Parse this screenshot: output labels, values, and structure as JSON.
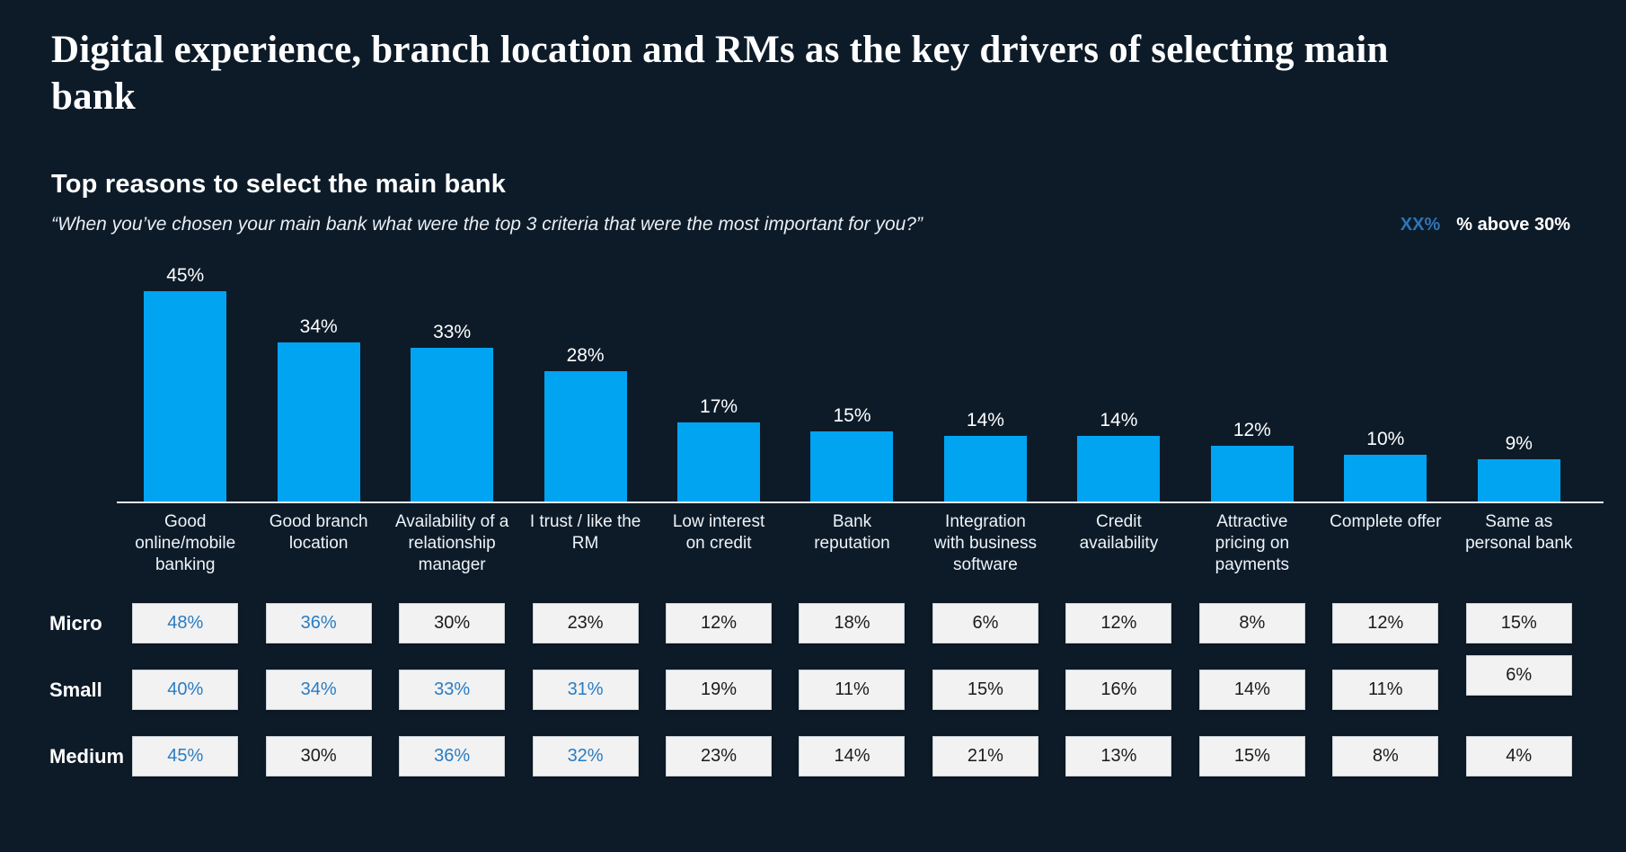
{
  "header": {
    "title": "Digital experience, branch location and RMs as the key drivers of selecting main bank"
  },
  "chart": {
    "title": "Top reasons to select the main bank",
    "subtitle": "“When you’ve chosen your main bank what were the top 3 criteria that were the most important for you?”",
    "legend": {
      "sample": "XX%",
      "label": "% above 30%"
    }
  },
  "chart_data": {
    "type": "bar",
    "title": "Top reasons to select the main bank",
    "subtitle": "“When you’ve chosen your main bank what were the top 3 criteria that were the most important for you?”",
    "unit": "%",
    "ylim": [
      0,
      50
    ],
    "grid": false,
    "legend_note": "values above 30% shown in blue",
    "categories": [
      "Good online/mobile banking",
      "Good branch location",
      "Availability of a relationship manager",
      "I trust / like the RM",
      "Low interest on credit",
      "Bank reputation",
      "Integration with business software",
      "Credit availability",
      "Attractive pricing on payments",
      "Complete offer",
      "Same as personal bank"
    ],
    "values": [
      45,
      34,
      33,
      28,
      17,
      15,
      14,
      14,
      12,
      10,
      9
    ],
    "table": {
      "highlight_threshold": 30,
      "rows": [
        {
          "label": "Micro",
          "values": [
            48,
            36,
            30,
            23,
            12,
            18,
            6,
            12,
            8,
            12,
            15
          ]
        },
        {
          "label": "Small",
          "values": [
            40,
            34,
            33,
            31,
            19,
            11,
            15,
            16,
            14,
            11,
            6
          ]
        },
        {
          "label": "Medium",
          "values": [
            45,
            30,
            36,
            32,
            23,
            14,
            21,
            13,
            15,
            8,
            4
          ]
        }
      ]
    }
  },
  "colors": {
    "bg": "#0d1b29",
    "bar": "#00a4f1",
    "legend_blue": "#2e75b6",
    "cell_hl": "#2a7cc2",
    "cell_bg": "#f2f2f2",
    "text": "#ffffff"
  }
}
